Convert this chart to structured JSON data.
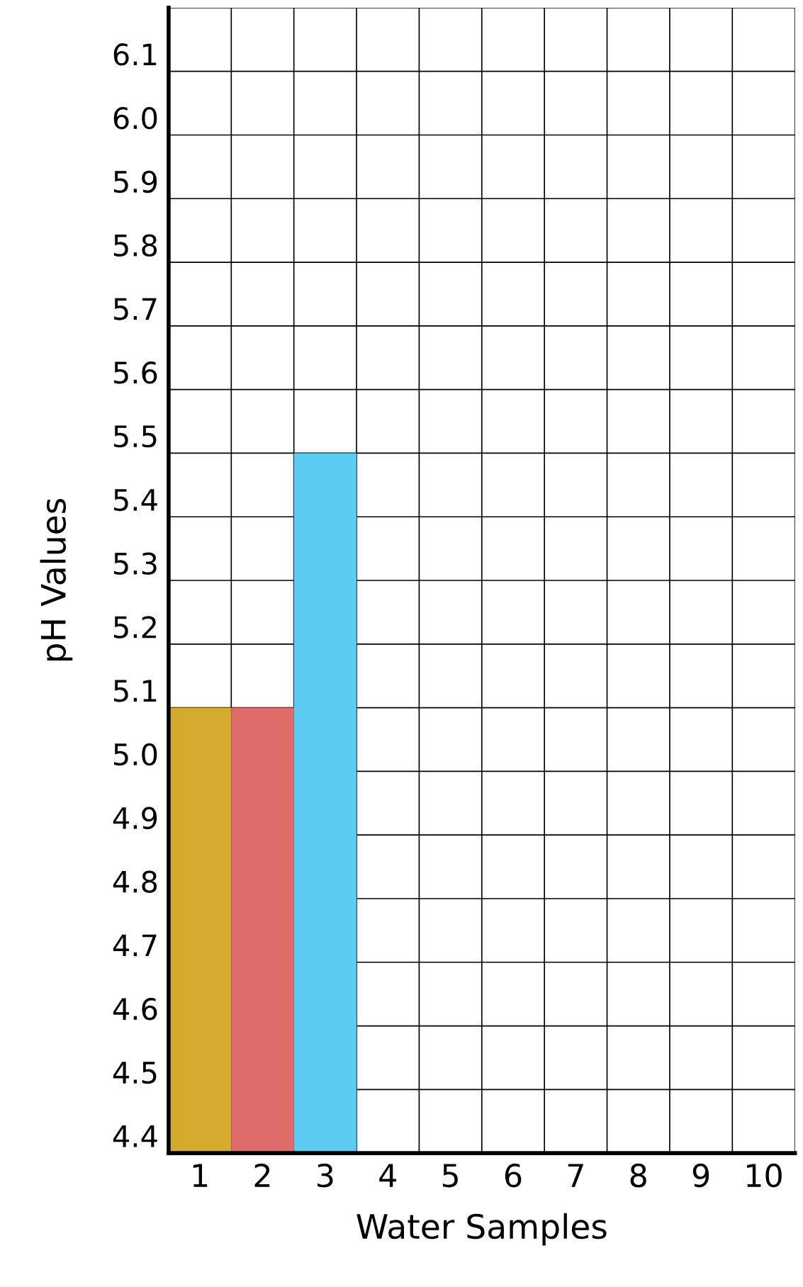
{
  "chart_data": {
    "type": "bar",
    "xlabel": "Water Samples",
    "ylabel": "pH Values",
    "categories": [
      "1",
      "2",
      "3",
      "4",
      "5",
      "6",
      "7",
      "8",
      "9",
      "10"
    ],
    "values": [
      5.1,
      5.1,
      5.5,
      null,
      null,
      null,
      null,
      null,
      null,
      null
    ],
    "colors": [
      "#d4aa2e",
      "#e06b6b",
      "#5ccbf3",
      null,
      null,
      null,
      null,
      null,
      null,
      null
    ],
    "ylim": [
      4.4,
      6.2
    ],
    "yticks": [
      4.4,
      4.5,
      4.6,
      4.7,
      4.8,
      4.9,
      {
        "value": 5.0,
        "label": "5.0"
      },
      5.1,
      5.2,
      5.3,
      5.4,
      5.5,
      5.6,
      5.7,
      5.8,
      5.9,
      {
        "value": 6.0,
        "label": "6.0"
      },
      6.1,
      {
        "value": 6.2,
        "label": null
      }
    ],
    "grid": true
  }
}
